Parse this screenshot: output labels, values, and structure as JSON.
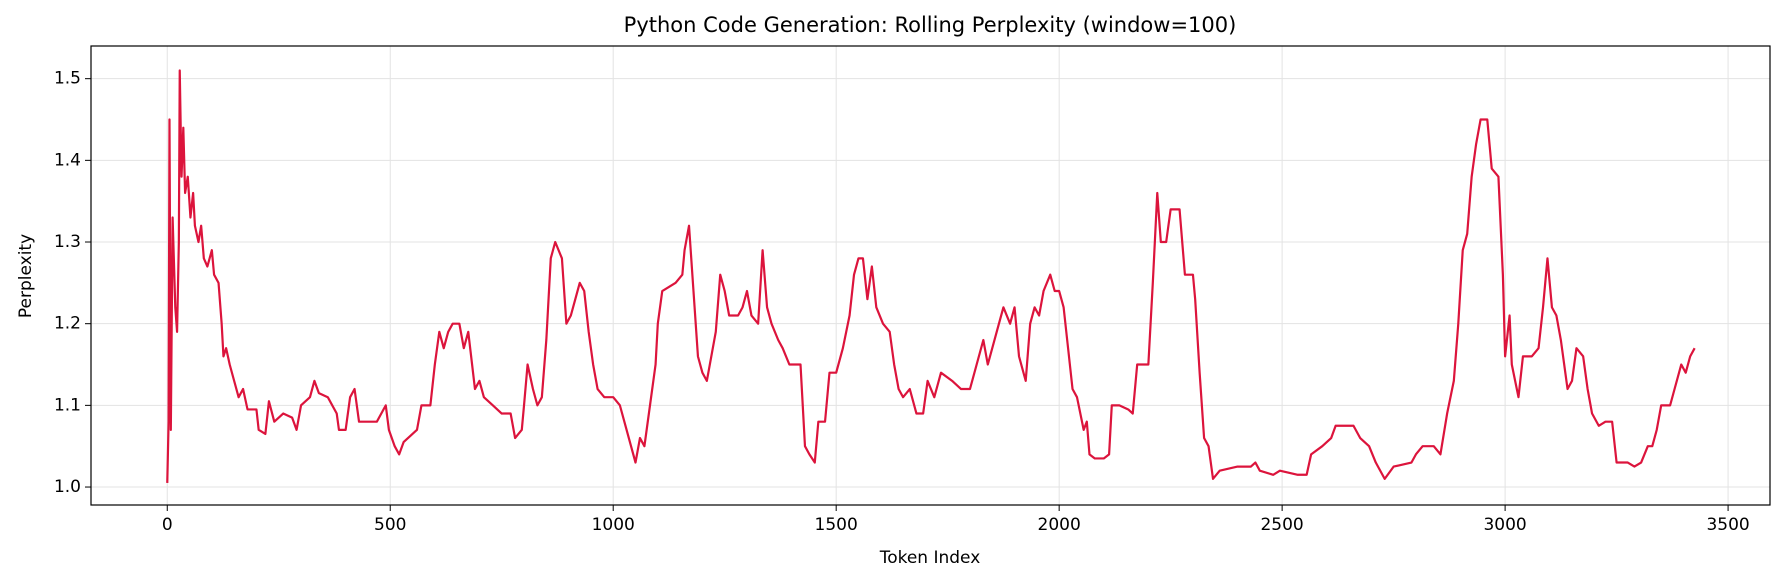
{
  "chart_data": {
    "type": "line",
    "title": "Python Code Generation: Rolling Perplexity (window=100)",
    "x_label": "Token Index",
    "y_label": "Perplexity",
    "color": "#dc143c",
    "grid": true,
    "xlim": [
      -171,
      3594
    ],
    "ylim": [
      0.978,
      1.54
    ],
    "xticks": [
      0,
      500,
      1000,
      1500,
      2000,
      2500,
      3000,
      3500
    ],
    "yticks": [
      {
        "value": 1,
        "label": "1.0"
      },
      1.1,
      1.2,
      1.3,
      1.4,
      1.5
    ],
    "x": [
      0,
      3,
      5,
      8,
      12,
      18,
      22,
      26,
      28,
      32,
      36,
      40,
      46,
      52,
      58,
      62,
      70,
      76,
      82,
      90,
      100,
      105,
      115,
      122,
      126,
      132,
      140,
      150,
      160,
      170,
      180,
      200,
      205,
      220,
      228,
      240,
      260,
      280,
      290,
      300,
      320,
      330,
      340,
      360,
      380,
      385,
      400,
      410,
      420,
      430,
      470,
      480,
      490,
      497,
      510,
      520,
      530,
      560,
      570,
      590,
      600,
      610,
      620,
      630,
      640,
      655,
      665,
      675,
      690,
      700,
      710,
      730,
      750,
      770,
      780,
      795,
      800,
      808,
      820,
      830,
      840,
      850,
      860,
      870,
      885,
      895,
      905,
      915,
      925,
      935,
      945,
      955,
      965,
      980,
      1000,
      1015,
      1025,
      1040,
      1050,
      1060,
      1070,
      1085,
      1095,
      1100,
      1110,
      1125,
      1140,
      1155,
      1160,
      1170,
      1180,
      1190,
      1200,
      1210,
      1220,
      1230,
      1240,
      1250,
      1260,
      1280,
      1290,
      1300,
      1310,
      1325,
      1335,
      1345,
      1355,
      1370,
      1380,
      1395,
      1420,
      1430,
      1440,
      1452,
      1460,
      1475,
      1485,
      1500,
      1515,
      1530,
      1540,
      1550,
      1560,
      1570,
      1580,
      1590,
      1605,
      1620,
      1630,
      1640,
      1650,
      1665,
      1680,
      1695,
      1705,
      1720,
      1735,
      1760,
      1780,
      1800,
      1815,
      1830,
      1840,
      1860,
      1875,
      1890,
      1900,
      1910,
      1925,
      1935,
      1945,
      1955,
      1965,
      1980,
      1990,
      2000,
      2010,
      2020,
      2030,
      2040,
      2055,
      2062,
      2068,
      2080,
      2100,
      2112,
      2118,
      2135,
      2155,
      2165,
      2175,
      2200,
      2210,
      2220,
      2228,
      2240,
      2250,
      2270,
      2282,
      2300,
      2305,
      2315,
      2325,
      2335,
      2345,
      2360,
      2400,
      2430,
      2440,
      2450,
      2480,
      2495,
      2535,
      2555,
      2565,
      2590,
      2610,
      2620,
      2660,
      2675,
      2695,
      2710,
      2730,
      2750,
      2790,
      2800,
      2815,
      2840,
      2855,
      2870,
      2885,
      2895,
      2905,
      2915,
      2925,
      2935,
      2945,
      2960,
      2970,
      2985,
      2995,
      3000,
      3010,
      3015,
      3030,
      3040,
      3060,
      3075,
      3085,
      3095,
      3105,
      3115,
      3125,
      3140,
      3150,
      3160,
      3175,
      3185,
      3195,
      3210,
      3225,
      3240,
      3250,
      3275,
      3290,
      3305,
      3320,
      3330,
      3340,
      3350,
      3370,
      3380,
      3395,
      3405,
      3415,
      3425
    ],
    "values": [
      1.005,
      1.08,
      1.45,
      1.07,
      1.33,
      1.22,
      1.19,
      1.3,
      1.51,
      1.38,
      1.44,
      1.36,
      1.38,
      1.33,
      1.36,
      1.32,
      1.3,
      1.32,
      1.28,
      1.27,
      1.29,
      1.26,
      1.25,
      1.2,
      1.16,
      1.17,
      1.15,
      1.13,
      1.11,
      1.12,
      1.095,
      1.095,
      1.07,
      1.065,
      1.105,
      1.08,
      1.09,
      1.085,
      1.07,
      1.1,
      1.11,
      1.13,
      1.115,
      1.11,
      1.09,
      1.07,
      1.07,
      1.11,
      1.12,
      1.08,
      1.08,
      1.09,
      1.1,
      1.07,
      1.05,
      1.04,
      1.055,
      1.07,
      1.1,
      1.1,
      1.15,
      1.19,
      1.17,
      1.19,
      1.2,
      1.2,
      1.17,
      1.19,
      1.12,
      1.13,
      1.11,
      1.1,
      1.09,
      1.09,
      1.06,
      1.07,
      1.1,
      1.15,
      1.12,
      1.1,
      1.11,
      1.18,
      1.28,
      1.3,
      1.28,
      1.2,
      1.21,
      1.23,
      1.25,
      1.24,
      1.19,
      1.15,
      1.12,
      1.11,
      1.11,
      1.1,
      1.08,
      1.05,
      1.03,
      1.06,
      1.05,
      1.11,
      1.15,
      1.2,
      1.24,
      1.245,
      1.25,
      1.26,
      1.29,
      1.32,
      1.24,
      1.16,
      1.14,
      1.13,
      1.16,
      1.19,
      1.26,
      1.24,
      1.21,
      1.21,
      1.22,
      1.24,
      1.21,
      1.2,
      1.29,
      1.22,
      1.2,
      1.18,
      1.17,
      1.15,
      1.15,
      1.05,
      1.04,
      1.03,
      1.08,
      1.08,
      1.14,
      1.14,
      1.17,
      1.21,
      1.26,
      1.28,
      1.28,
      1.23,
      1.27,
      1.22,
      1.2,
      1.19,
      1.15,
      1.12,
      1.11,
      1.12,
      1.09,
      1.09,
      1.13,
      1.11,
      1.14,
      1.13,
      1.12,
      1.12,
      1.15,
      1.18,
      1.15,
      1.19,
      1.22,
      1.2,
      1.22,
      1.16,
      1.13,
      1.2,
      1.22,
      1.21,
      1.24,
      1.26,
      1.24,
      1.24,
      1.22,
      1.17,
      1.12,
      1.11,
      1.07,
      1.08,
      1.04,
      1.035,
      1.035,
      1.04,
      1.1,
      1.1,
      1.095,
      1.09,
      1.15,
      1.15,
      1.25,
      1.36,
      1.3,
      1.3,
      1.34,
      1.34,
      1.26,
      1.26,
      1.23,
      1.14,
      1.06,
      1.05,
      1.01,
      1.02,
      1.025,
      1.025,
      1.03,
      1.02,
      1.015,
      1.02,
      1.015,
      1.015,
      1.04,
      1.05,
      1.06,
      1.075,
      1.075,
      1.06,
      1.05,
      1.03,
      1.01,
      1.025,
      1.03,
      1.04,
      1.05,
      1.05,
      1.04,
      1.09,
      1.13,
      1.2,
      1.29,
      1.31,
      1.38,
      1.42,
      1.45,
      1.45,
      1.39,
      1.38,
      1.26,
      1.16,
      1.21,
      1.15,
      1.11,
      1.16,
      1.16,
      1.17,
      1.22,
      1.28,
      1.22,
      1.21,
      1.18,
      1.12,
      1.13,
      1.17,
      1.16,
      1.12,
      1.09,
      1.075,
      1.08,
      1.08,
      1.03,
      1.03,
      1.025,
      1.03,
      1.05,
      1.05,
      1.07,
      1.1,
      1.1,
      1.12,
      1.15,
      1.14,
      1.16,
      1.17
    ]
  }
}
